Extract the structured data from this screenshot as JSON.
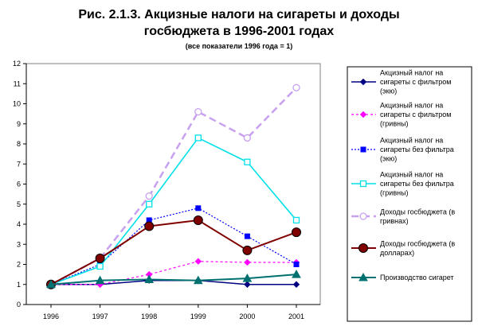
{
  "chart_data": {
    "type": "line",
    "title_line1": "Рис. 2.1.3. Акцизные налоги на сигареты и  доходы",
    "title_line2": "госбюджета в 1996-2001 годах",
    "subtitle": "(все показатели 1996 года = 1)",
    "x": [
      "1996",
      "1997",
      "1998",
      "1999",
      "2000",
      "2001"
    ],
    "ylim": [
      0,
      12
    ],
    "yticks": [
      "0",
      "1",
      "2",
      "3",
      "4",
      "5",
      "6",
      "7",
      "8",
      "9",
      "10",
      "11",
      "12"
    ],
    "grid": false,
    "legend_position": "right",
    "series": [
      {
        "name_lines": [
          "Акцизный налог на",
          "сигареты с фильтром",
          "(экю)"
        ],
        "color": "#000080",
        "dash": "none",
        "marker": "diamond",
        "markerFill": "#000080",
        "width": 1.5,
        "values": [
          1.0,
          1.0,
          1.2,
          1.2,
          1.0,
          1.0
        ]
      },
      {
        "name_lines": [
          "Акцизный налог на",
          "сигареты с фильтром",
          "(гривны)"
        ],
        "color": "#ff00ff",
        "dash": "3,3",
        "marker": "diamond",
        "markerFill": "#ff00ff",
        "width": 1.2,
        "values": [
          1.0,
          1.0,
          1.5,
          2.15,
          2.1,
          2.1
        ]
      },
      {
        "name_lines": [
          "Акцизный налог на",
          "сигареты без фильтра",
          "(экю)"
        ],
        "color": "#0000ff",
        "dash": "2,2",
        "marker": "square",
        "markerFill": "#0000ff",
        "width": 1.2,
        "values": [
          1.0,
          2.0,
          4.2,
          4.8,
          3.4,
          2.0
        ]
      },
      {
        "name_lines": [
          "Акцизный налог на",
          "сигареты без фильтра",
          "(гривны)"
        ],
        "color": "#00e0e8",
        "dash": "none",
        "marker": "square-open",
        "markerFill": "#ffffff",
        "width": 1.6,
        "values": [
          1.0,
          1.9,
          5.0,
          8.3,
          7.1,
          4.2
        ]
      },
      {
        "name_lines": [
          "Доходы госбюджета (в",
          "гривнах)"
        ],
        "color": "#c8a0f0",
        "dash": "9,5",
        "marker": "circle-open",
        "markerFill": "#ffffff",
        "width": 2.5,
        "values": [
          1.0,
          2.3,
          5.4,
          9.6,
          8.3,
          10.8
        ]
      },
      {
        "name_lines": [
          "Доходы госбюджета (в",
          "долларах)"
        ],
        "color": "#800000",
        "dash": "none",
        "marker": "circle",
        "markerFill": "#800000",
        "width": 2.0,
        "values": [
          1.0,
          2.3,
          3.9,
          4.2,
          2.7,
          3.6
        ]
      },
      {
        "name_lines": [
          "Производство сигарет"
        ],
        "color": "#007070",
        "dash": "none",
        "marker": "triangle",
        "markerFill": "#007070",
        "width": 2.0,
        "values": [
          1.0,
          1.2,
          1.25,
          1.2,
          1.3,
          1.5
        ]
      }
    ]
  }
}
